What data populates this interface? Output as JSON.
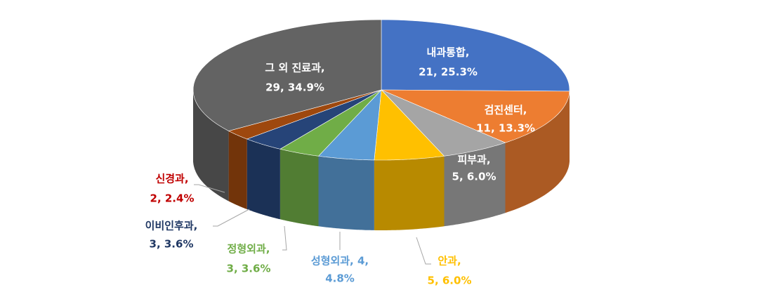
{
  "chart_data": {
    "type": "pie3d",
    "values": [
      21,
      11,
      5,
      5,
      4,
      3,
      3,
      2,
      29
    ],
    "value_labels": [
      [
        "내과통합,",
        "21, 25.3%"
      ],
      [
        "검진센터,",
        "11, 13.3%"
      ],
      [
        "피부과,",
        "5, 6.0%"
      ],
      [
        "안과,",
        "5, 6.0%"
      ],
      [
        "성형외과, 4,",
        "4.8%"
      ],
      [
        "정형외과,",
        "3, 3.6%"
      ],
      [
        "이비인후과,",
        "3, 3.6%"
      ],
      [
        "신경과,",
        "2, 2.4%"
      ],
      [
        "그 외 진료과,",
        "29, 34.9%"
      ]
    ],
    "colors": [
      "#4472c4",
      "#ed7d31",
      "#a5a5a5",
      "#ffc000",
      "#5b9bd5",
      "#70ad47",
      "#264478",
      "#9e480e",
      "#636363"
    ],
    "label_colors": [
      "#ffffff",
      "#ffffff",
      "#ffffff",
      "#ffc000",
      "#5b9bd5",
      "#70ad47",
      "#203864",
      "#c00000",
      "#ffffff"
    ]
  }
}
